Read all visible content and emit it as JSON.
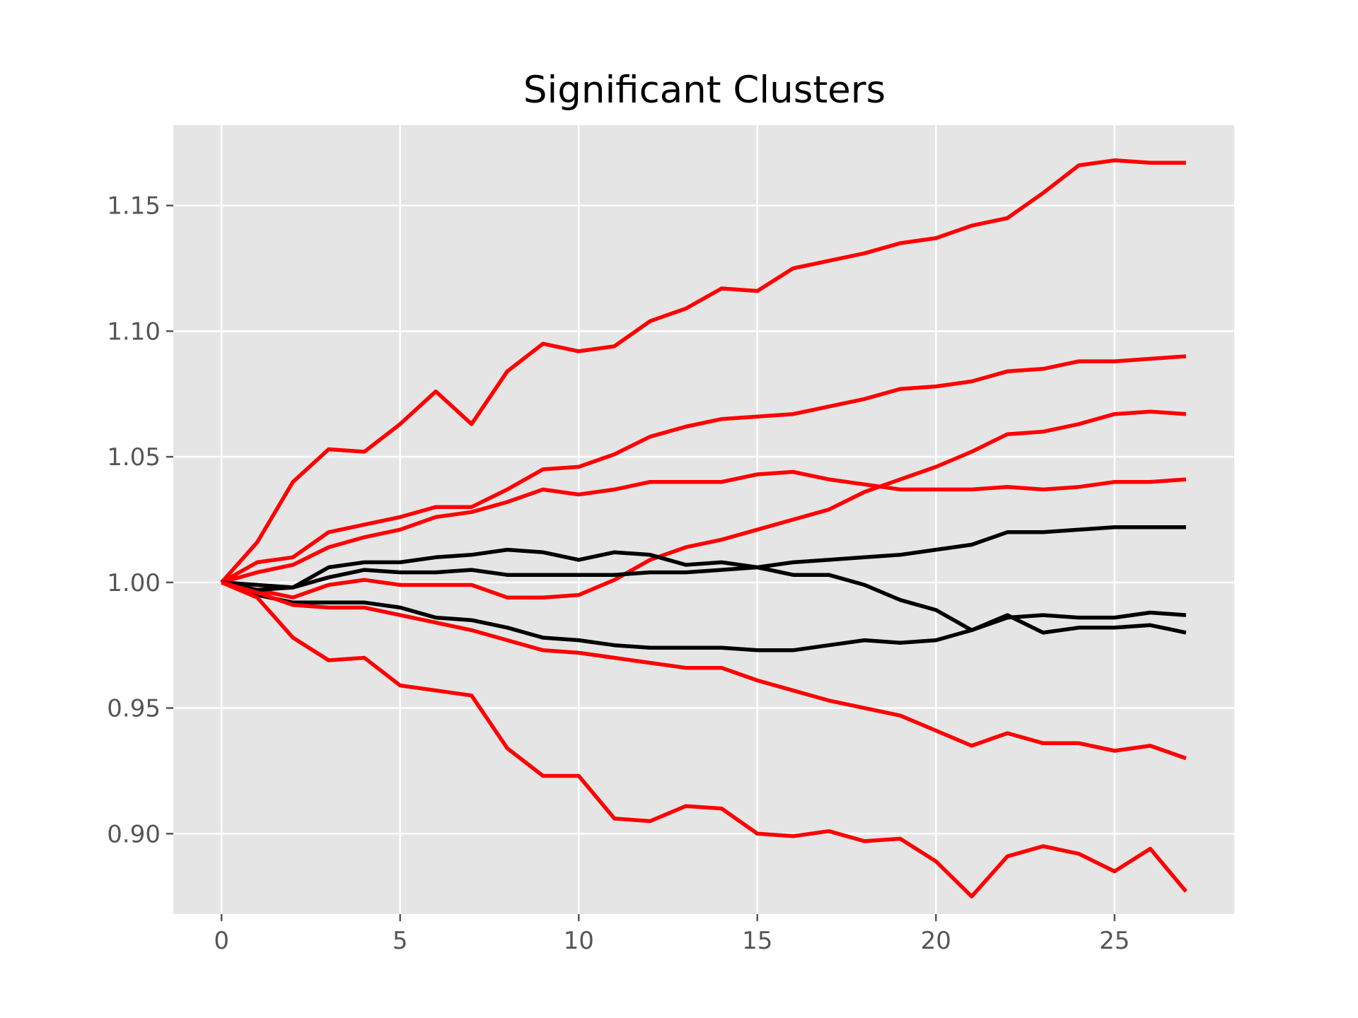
{
  "chart_data": {
    "type": "line",
    "title": "Significant Clusters",
    "xlabel": "",
    "ylabel": "",
    "xlim": [
      -1.35,
      28.35
    ],
    "ylim": [
      0.868,
      1.182
    ],
    "xticks": [
      0,
      5,
      10,
      15,
      20,
      25
    ],
    "yticks": [
      0.9,
      0.95,
      1.0,
      1.05,
      1.1,
      1.15
    ],
    "ytick_labels": [
      "0.90",
      "0.95",
      "1.00",
      "1.05",
      "1.10",
      "1.15"
    ],
    "grid": true,
    "background": "#e5e5e5",
    "x": [
      0,
      1,
      2,
      3,
      4,
      5,
      6,
      7,
      8,
      9,
      10,
      11,
      12,
      13,
      14,
      15,
      16,
      17,
      18,
      19,
      20,
      21,
      22,
      23,
      24,
      25,
      26,
      27
    ],
    "series": [
      {
        "color": "#ff0000",
        "values": [
          1.0,
          1.016,
          1.04,
          1.053,
          1.052,
          1.063,
          1.076,
          1.063,
          1.084,
          1.095,
          1.092,
          1.094,
          1.104,
          1.109,
          1.117,
          1.116,
          1.125,
          1.128,
          1.131,
          1.135,
          1.137,
          1.142,
          1.145,
          1.155,
          1.166,
          1.168,
          1.167,
          1.167
        ]
      },
      {
        "color": "#ff0000",
        "values": [
          1.0,
          1.008,
          1.01,
          1.02,
          1.023,
          1.026,
          1.03,
          1.03,
          1.037,
          1.045,
          1.046,
          1.051,
          1.058,
          1.062,
          1.065,
          1.066,
          1.067,
          1.07,
          1.073,
          1.077,
          1.078,
          1.08,
          1.084,
          1.085,
          1.088,
          1.088,
          1.089,
          1.09
        ]
      },
      {
        "color": "#ff0000",
        "values": [
          1.0,
          1.004,
          1.007,
          1.014,
          1.018,
          1.021,
          1.026,
          1.028,
          1.032,
          1.037,
          1.035,
          1.037,
          1.04,
          1.04,
          1.04,
          1.043,
          1.044,
          1.041,
          1.039,
          1.037,
          1.037,
          1.037,
          1.038,
          1.037,
          1.038,
          1.04,
          1.04,
          1.041
        ]
      },
      {
        "color": "#ff0000",
        "values": [
          1.0,
          0.997,
          0.994,
          0.999,
          1.001,
          0.999,
          0.999,
          0.999,
          0.994,
          0.994,
          0.995,
          1.001,
          1.009,
          1.014,
          1.017,
          1.021,
          1.025,
          1.029,
          1.036,
          1.041,
          1.046,
          1.052,
          1.059,
          1.06,
          1.063,
          1.067,
          1.068,
          1.067
        ]
      },
      {
        "color": "#000000",
        "values": [
          1.0,
          0.997,
          0.998,
          1.006,
          1.008,
          1.008,
          1.01,
          1.011,
          1.013,
          1.012,
          1.009,
          1.012,
          1.011,
          1.007,
          1.008,
          1.006,
          1.003,
          1.003,
          0.999,
          0.993,
          0.989,
          0.981,
          0.987,
          0.98,
          0.982,
          0.982,
          0.983,
          0.98
        ]
      },
      {
        "color": "#000000",
        "values": [
          1.0,
          0.999,
          0.998,
          1.002,
          1.005,
          1.004,
          1.004,
          1.005,
          1.003,
          1.003,
          1.003,
          1.003,
          1.004,
          1.004,
          1.005,
          1.006,
          1.008,
          1.009,
          1.01,
          1.011,
          1.013,
          1.015,
          1.02,
          1.02,
          1.021,
          1.022,
          1.022,
          1.022
        ]
      },
      {
        "color": "#000000",
        "values": [
          1.0,
          0.995,
          0.992,
          0.992,
          0.992,
          0.99,
          0.986,
          0.985,
          0.982,
          0.978,
          0.977,
          0.975,
          0.974,
          0.974,
          0.974,
          0.973,
          0.973,
          0.975,
          0.977,
          0.976,
          0.977,
          0.981,
          0.986,
          0.987,
          0.986,
          0.986,
          0.988,
          0.987
        ]
      },
      {
        "color": "#ff0000",
        "values": [
          1.0,
          0.996,
          0.991,
          0.99,
          0.99,
          0.987,
          0.984,
          0.981,
          0.977,
          0.973,
          0.972,
          0.97,
          0.968,
          0.966,
          0.966,
          0.961,
          0.957,
          0.953,
          0.95,
          0.947,
          0.941,
          0.935,
          0.94,
          0.936,
          0.936,
          0.933,
          0.935,
          0.93
        ]
      },
      {
        "color": "#ff0000",
        "values": [
          1.0,
          0.994,
          0.978,
          0.969,
          0.97,
          0.959,
          0.957,
          0.955,
          0.934,
          0.923,
          0.923,
          0.906,
          0.905,
          0.911,
          0.91,
          0.9,
          0.899,
          0.901,
          0.897,
          0.898,
          0.889,
          0.875,
          0.891,
          0.895,
          0.892,
          0.885,
          0.894,
          0.877
        ]
      }
    ]
  }
}
